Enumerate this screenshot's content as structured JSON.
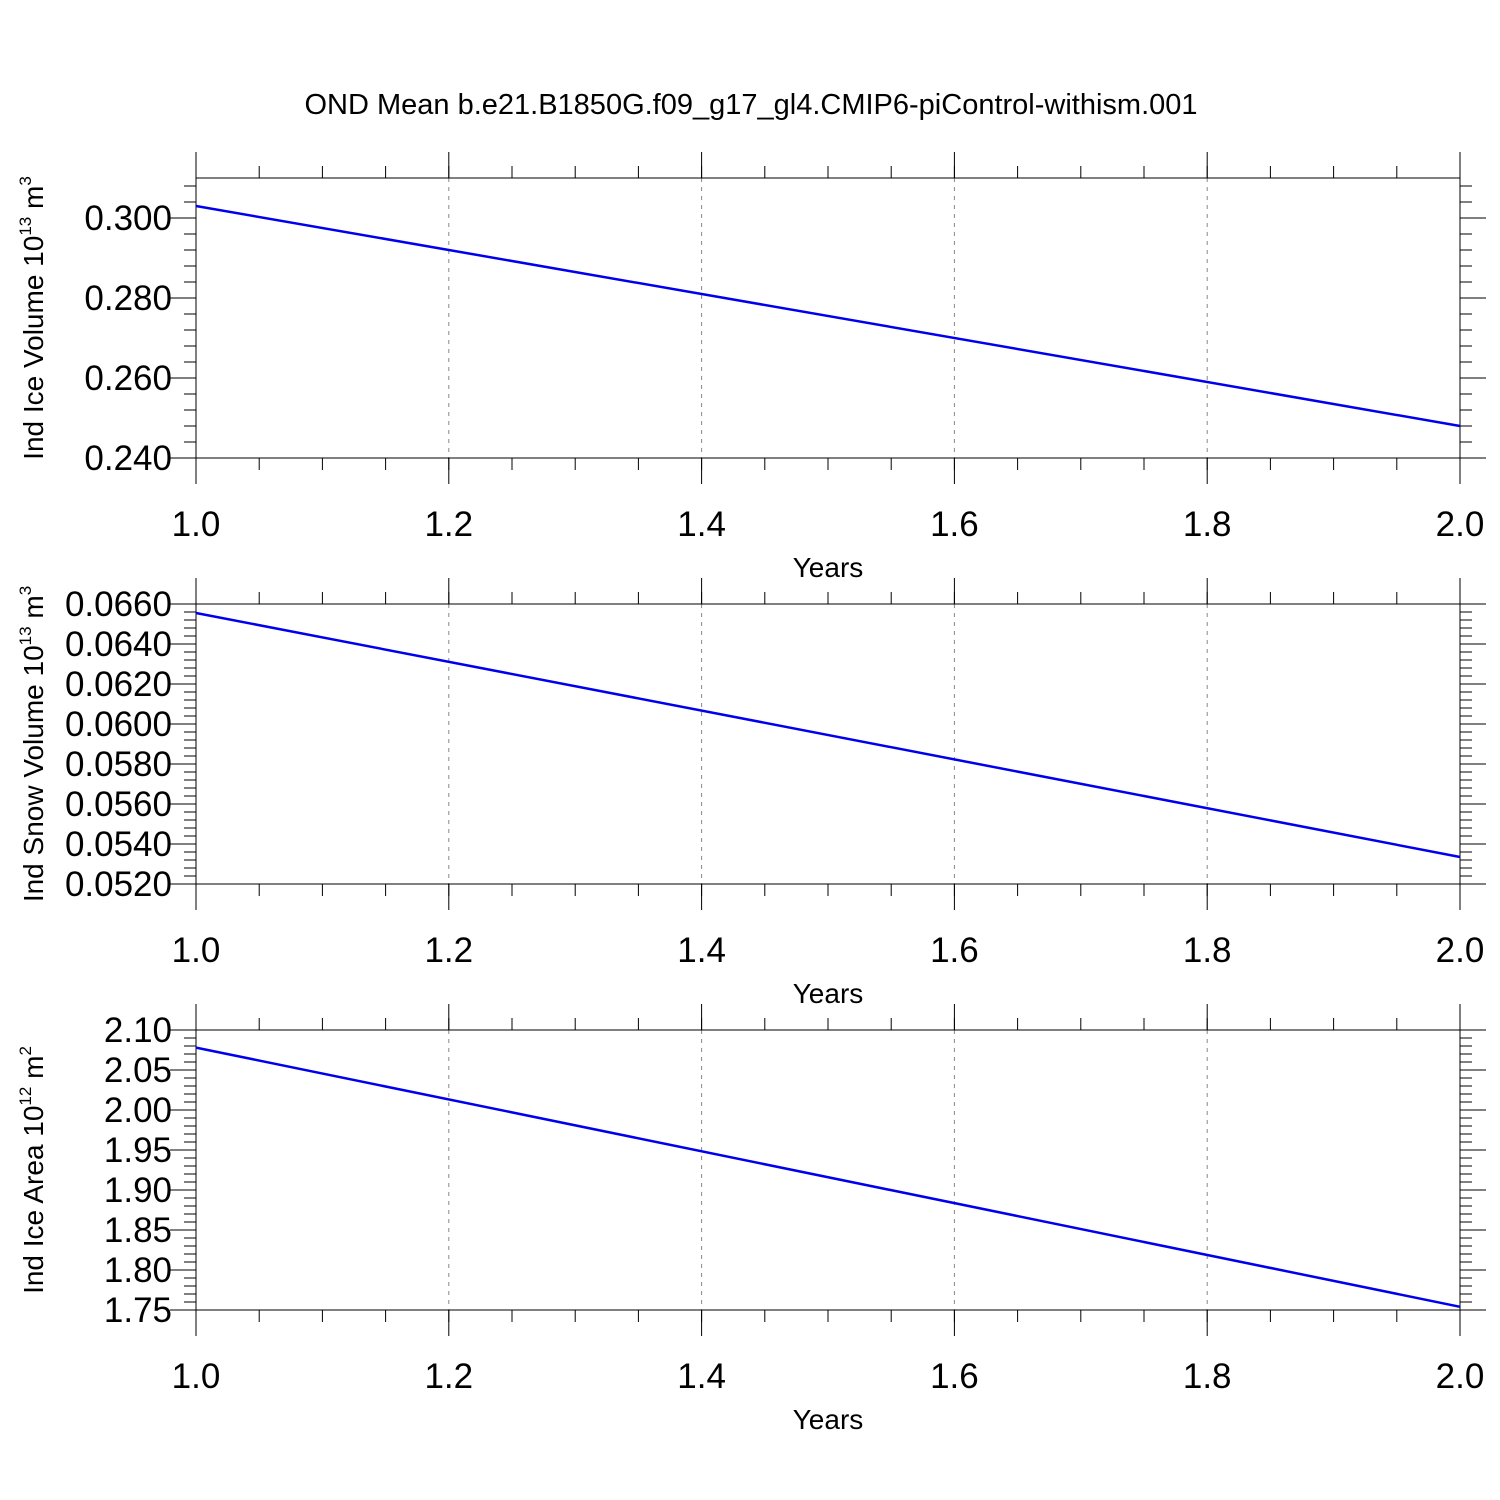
{
  "figure": {
    "title": "OND Mean b.e21.B1850G.f09_g17_gl4.CMIP6-piControl-withism.001"
  },
  "chart_data": [
    {
      "type": "line",
      "xlabel": "Years",
      "ylabel": "Ind Ice Volume 10",
      "ylabel_sup": "13",
      "ylabel_unit": " m",
      "ylabel_unit_sup": "3",
      "xlim": [
        1.0,
        2.0
      ],
      "ylim": [
        0.24,
        0.31
      ],
      "xticks": [
        1.0,
        1.2,
        1.4,
        1.6,
        1.8,
        2.0
      ],
      "xtick_labels": [
        "1.0",
        "1.2",
        "1.4",
        "1.6",
        "1.8",
        "2.0"
      ],
      "yticks": [
        0.24,
        0.26,
        0.28,
        0.3
      ],
      "ytick_labels": [
        "0.240",
        "0.260",
        "0.280",
        "0.300"
      ],
      "ytick_decimals": 3,
      "grid": "vertical dashed",
      "color": "#0000ee",
      "series": [
        {
          "x": [
            1.0,
            2.0
          ],
          "y": [
            0.303,
            0.248
          ]
        }
      ]
    },
    {
      "type": "line",
      "xlabel": "Years",
      "ylabel": "Ind Snow Volume 10",
      "ylabel_sup": "13",
      "ylabel_unit": " m",
      "ylabel_unit_sup": "3",
      "xlim": [
        1.0,
        2.0
      ],
      "ylim": [
        0.052,
        0.066
      ],
      "xticks": [
        1.0,
        1.2,
        1.4,
        1.6,
        1.8,
        2.0
      ],
      "xtick_labels": [
        "1.0",
        "1.2",
        "1.4",
        "1.6",
        "1.8",
        "2.0"
      ],
      "yticks": [
        0.052,
        0.054,
        0.056,
        0.058,
        0.06,
        0.062,
        0.064,
        0.066
      ],
      "ytick_labels": [
        "0.0520",
        "0.0540",
        "0.0560",
        "0.0580",
        "0.0600",
        "0.0620",
        "0.0640",
        "0.0660"
      ],
      "ytick_decimals": 4,
      "grid": "vertical dashed",
      "color": "#0000ee",
      "series": [
        {
          "x": [
            1.0,
            2.0
          ],
          "y": [
            0.06555,
            0.05335
          ]
        }
      ]
    },
    {
      "type": "line",
      "xlabel": "Years",
      "ylabel": "Ind Ice Area 10",
      "ylabel_sup": "12",
      "ylabel_unit": " m",
      "ylabel_unit_sup": "2",
      "xlim": [
        1.0,
        2.0
      ],
      "ylim": [
        1.75,
        2.1
      ],
      "xticks": [
        1.0,
        1.2,
        1.4,
        1.6,
        1.8,
        2.0
      ],
      "xtick_labels": [
        "1.0",
        "1.2",
        "1.4",
        "1.6",
        "1.8",
        "2.0"
      ],
      "yticks": [
        1.75,
        1.8,
        1.85,
        1.9,
        1.95,
        2.0,
        2.05,
        2.1
      ],
      "ytick_labels": [
        "1.75",
        "1.80",
        "1.85",
        "1.90",
        "1.95",
        "2.00",
        "2.05",
        "2.10"
      ],
      "ytick_decimals": 2,
      "grid": "vertical dashed",
      "color": "#0000ee",
      "series": [
        {
          "x": [
            1.0,
            2.0
          ],
          "y": [
            2.078,
            1.754
          ]
        }
      ]
    }
  ]
}
